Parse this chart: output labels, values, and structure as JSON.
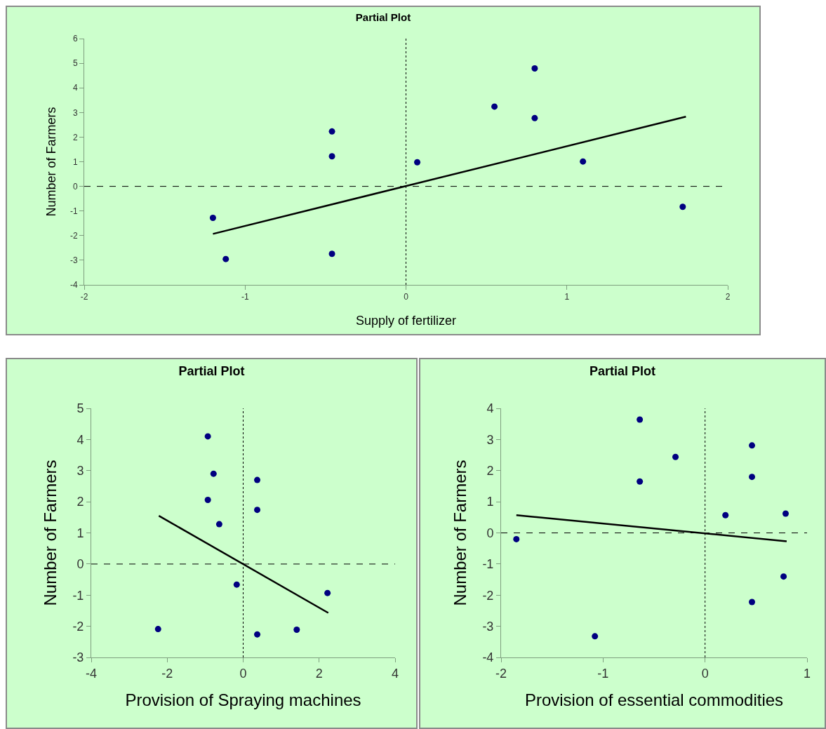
{
  "chart_data": [
    {
      "type": "scatter",
      "title": "Partial Plot",
      "xlabel": "Supply of fertilizer",
      "ylabel": "Number of Farmers",
      "xlim": [
        -2,
        2
      ],
      "xticks": [
        -2,
        -1,
        0,
        1,
        2
      ],
      "ylim": [
        -4,
        6
      ],
      "yticks": [
        -4,
        -3,
        -2,
        -1,
        0,
        1,
        2,
        3,
        4,
        5,
        6
      ],
      "grid": false,
      "marker": "circle",
      "ref_lines": [
        {
          "axis": "x",
          "value": 0,
          "line_style": "dotted",
          "color": "#000000"
        },
        {
          "axis": "y",
          "value": 0,
          "line_style": "dashed",
          "color": "#000000"
        }
      ],
      "series": [
        {
          "color": "#000080",
          "x": [
            -1.2,
            -1.12,
            -0.46,
            -0.46,
            -0.46,
            0.07,
            0.55,
            0.8,
            0.8,
            1.1,
            1.72
          ],
          "values": [
            -1.28,
            -2.95,
            2.23,
            1.22,
            -2.74,
            0.98,
            3.24,
            4.79,
            2.77,
            1.01,
            -0.83
          ]
        },
        {
          "type": "line",
          "color": "#000000",
          "line_style": "solid",
          "marker": "none",
          "x": [
            -1.2,
            1.74
          ],
          "values": [
            -1.93,
            2.83
          ]
        }
      ]
    },
    {
      "type": "scatter",
      "title": "Partial Plot",
      "xlabel": "Provision of Spraying machines",
      "ylabel": "Number of Farmers",
      "xlim": [
        -4,
        4
      ],
      "xticks": [
        -4,
        -2,
        0,
        2,
        4
      ],
      "ylim": [
        -3,
        5
      ],
      "yticks": [
        -3,
        -2,
        -1,
        0,
        1,
        2,
        3,
        4,
        5
      ],
      "grid": false,
      "marker": "circle",
      "ref_lines": [
        {
          "axis": "x",
          "value": 0,
          "line_style": "dotted",
          "color": "#000000"
        },
        {
          "axis": "y",
          "value": 0,
          "line_style": "dashed",
          "color": "#000000"
        }
      ],
      "series": [
        {
          "color": "#000080",
          "x": [
            -0.93,
            -0.78,
            -0.93,
            -0.63,
            -0.17,
            0.37,
            0.37,
            -2.24,
            0.37,
            1.41,
            2.22
          ],
          "values": [
            4.1,
            2.9,
            2.06,
            1.28,
            -0.66,
            2.7,
            1.74,
            -2.09,
            -2.26,
            -2.11,
            -0.93
          ]
        },
        {
          "type": "line",
          "color": "#000000",
          "line_style": "solid",
          "marker": "none",
          "x": [
            -2.22,
            2.24
          ],
          "values": [
            1.55,
            -1.57
          ]
        }
      ]
    },
    {
      "type": "scatter",
      "title": "Partial Plot",
      "xlabel": "Provision of essential commodities",
      "ylabel": "Number of Farmers",
      "xlim": [
        -2,
        1
      ],
      "xticks": [
        -2,
        -1,
        0,
        1
      ],
      "ylim": [
        -4,
        4
      ],
      "yticks": [
        -4,
        -3,
        -2,
        -1,
        0,
        1,
        2,
        3,
        4
      ],
      "grid": false,
      "marker": "circle",
      "ref_lines": [
        {
          "axis": "x",
          "value": 0,
          "line_style": "dotted",
          "color": "#000000"
        },
        {
          "axis": "y",
          "value": 0,
          "line_style": "dashed",
          "color": "#000000"
        }
      ],
      "series": [
        {
          "color": "#000080",
          "x": [
            -1.85,
            -1.08,
            -0.64,
            -0.64,
            -0.29,
            0.2,
            0.46,
            0.46,
            0.46,
            0.79,
            0.77
          ],
          "values": [
            -0.2,
            -3.32,
            3.64,
            1.65,
            2.44,
            0.57,
            2.81,
            1.8,
            -2.22,
            0.62,
            -1.4
          ]
        },
        {
          "type": "line",
          "color": "#000000",
          "line_style": "solid",
          "marker": "none",
          "x": [
            -1.85,
            0.8
          ],
          "values": [
            0.57,
            -0.27
          ]
        }
      ]
    }
  ]
}
